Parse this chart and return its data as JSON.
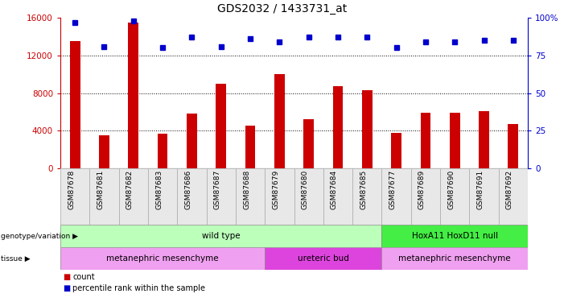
{
  "title": "GDS2032 / 1433731_at",
  "samples": [
    "GSM87678",
    "GSM87681",
    "GSM87682",
    "GSM87683",
    "GSM87686",
    "GSM87687",
    "GSM87688",
    "GSM87679",
    "GSM87680",
    "GSM87684",
    "GSM87685",
    "GSM87677",
    "GSM87689",
    "GSM87690",
    "GSM87691",
    "GSM87692"
  ],
  "counts": [
    13500,
    3500,
    15500,
    3700,
    5800,
    9000,
    4500,
    10000,
    5200,
    8700,
    8300,
    3800,
    5900,
    5900,
    6100,
    4700
  ],
  "percentiles": [
    97,
    81,
    98,
    80,
    87,
    81,
    86,
    84,
    87,
    87,
    87,
    80,
    84,
    84,
    85,
    85
  ],
  "ylim_left": [
    0,
    16000
  ],
  "ylim_right": [
    0,
    100
  ],
  "yticks_left": [
    0,
    4000,
    8000,
    12000,
    16000
  ],
  "yticks_right": [
    0,
    25,
    50,
    75,
    100
  ],
  "bar_color": "#cc0000",
  "dot_color": "#0000cc",
  "genotype_row": [
    {
      "label": "wild type",
      "start": 0,
      "end": 11,
      "color": "#bbffbb"
    },
    {
      "label": "HoxA11 HoxD11 null",
      "start": 11,
      "end": 16,
      "color": "#44ee44"
    }
  ],
  "tissue_row": [
    {
      "label": "metanephric mesenchyme",
      "start": 0,
      "end": 7,
      "color": "#f0a0f0"
    },
    {
      "label": "ureteric bud",
      "start": 7,
      "end": 11,
      "color": "#dd44dd"
    },
    {
      "label": "metanephric mesenchyme",
      "start": 11,
      "end": 16,
      "color": "#f0a0f0"
    }
  ],
  "legend_items": [
    {
      "label": "count",
      "color": "#cc0000"
    },
    {
      "label": "percentile rank within the sample",
      "color": "#0000cc"
    }
  ]
}
